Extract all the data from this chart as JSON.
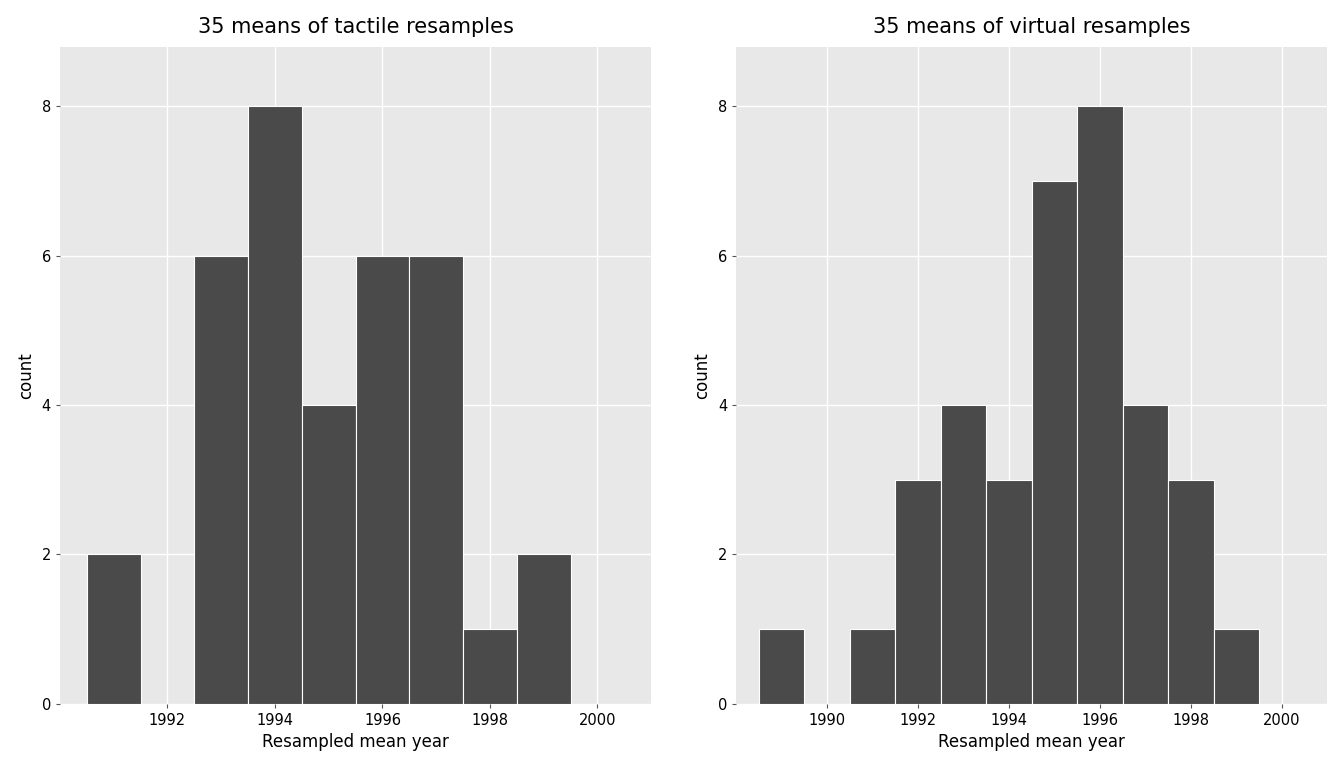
{
  "left_title": "35 means of tactile resamples",
  "right_title": "35 means of virtual resamples",
  "xlabel": "Resampled mean year",
  "ylabel": "count",
  "bar_color": "#4a4a4a",
  "background_color": "#e8e8e8",
  "grid_color": "#ffffff",
  "left_bars": {
    "x": [
      1991,
      1993,
      1994,
      1995,
      1996,
      1997,
      1998,
      1999
    ],
    "height": [
      2,
      6,
      8,
      4,
      6,
      6,
      1,
      2
    ]
  },
  "right_bars": {
    "x": [
      1989,
      1991,
      1992,
      1993,
      1994,
      1995,
      1996,
      1997,
      1998,
      1999
    ],
    "height": [
      1,
      1,
      3,
      4,
      3,
      7,
      8,
      4,
      3,
      1
    ]
  },
  "left_xlim": [
    1990.0,
    2001.0
  ],
  "right_xlim": [
    1988.0,
    2001.0
  ],
  "ylim": [
    0,
    8.8
  ],
  "yticks": [
    0,
    2,
    4,
    6,
    8
  ],
  "left_xticks": [
    1992,
    1994,
    1996,
    1998,
    2000
  ],
  "right_xticks": [
    1990,
    1992,
    1994,
    1996,
    1998,
    2000
  ],
  "bar_width": 1.0,
  "title_fontsize": 15,
  "axis_label_fontsize": 12,
  "tick_fontsize": 10.5,
  "fig_facecolor": "#ffffff"
}
